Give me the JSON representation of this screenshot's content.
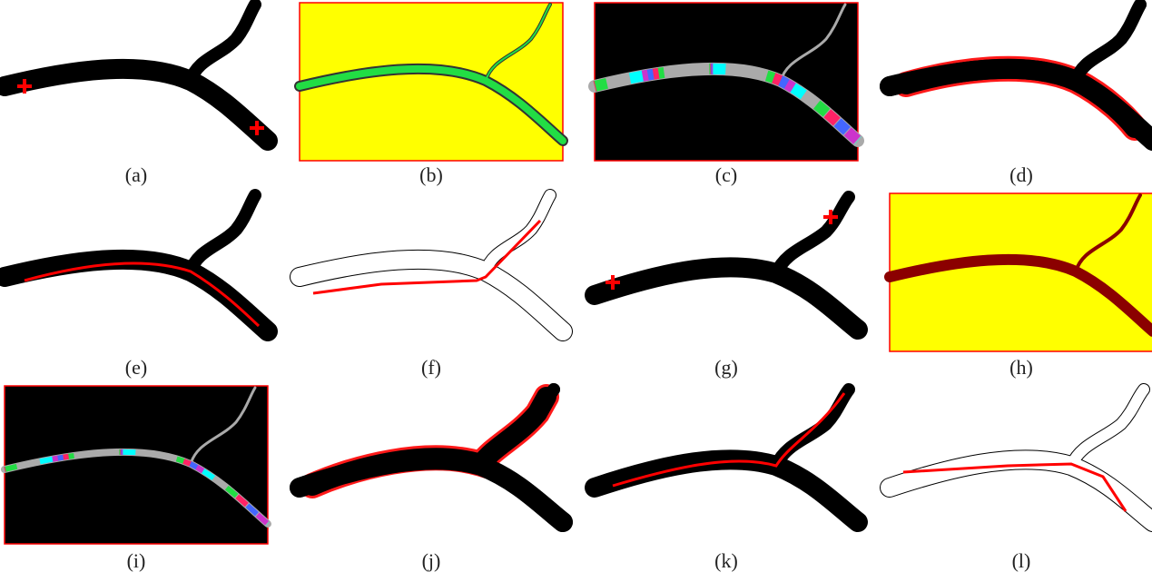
{
  "figure": {
    "labels": [
      "(a)",
      "(b)",
      "(c)",
      "(d)",
      "(e)",
      "(f)",
      "(g)",
      "(h)",
      "(i)",
      "(j)",
      "(k)",
      "(l)"
    ]
  }
}
